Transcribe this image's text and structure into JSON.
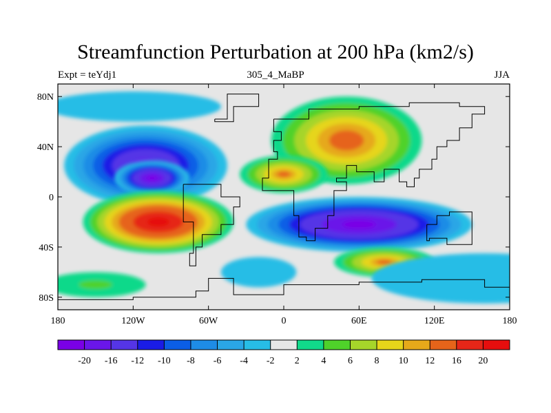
{
  "header": {
    "title": "Streamfunction Perturbation at 200 hPa (km2/s)",
    "left_label": "Expt = teYdj1",
    "center_label": "305_4_MaBP",
    "right_label": "JJA"
  },
  "map": {
    "projection": "cylindrical-equidistant",
    "lon_range": [
      -180,
      180
    ],
    "lat_range": [
      -90,
      90
    ],
    "x_ticks": [
      {
        "value": -180,
        "label": "180"
      },
      {
        "value": -120,
        "label": "120W"
      },
      {
        "value": -60,
        "label": "60W"
      },
      {
        "value": 0,
        "label": "0"
      },
      {
        "value": 60,
        "label": "60E"
      },
      {
        "value": 120,
        "label": "120E"
      },
      {
        "value": 180,
        "label": "180"
      }
    ],
    "y_ticks": [
      {
        "value": 80,
        "label": "80N"
      },
      {
        "value": 40,
        "label": "40N"
      },
      {
        "value": 0,
        "label": "0"
      },
      {
        "value": -40,
        "label": "40S"
      },
      {
        "value": -80,
        "label": "80S"
      }
    ],
    "features": [
      {
        "name": "blob-highlat-north-low",
        "lon": -120,
        "lat": 72,
        "rlon": 70,
        "rlat": 12,
        "value": -3
      },
      {
        "name": "blob-npac-low",
        "lon": -110,
        "lat": 25,
        "rlon": 65,
        "rlat": 32,
        "value": -18
      },
      {
        "name": "blob-npac-low-core",
        "lon": -105,
        "lat": 15,
        "rlon": 30,
        "rlat": 14,
        "value": -22
      },
      {
        "name": "blob-north-high-asia",
        "lon": 50,
        "lat": 45,
        "rlon": 60,
        "rlat": 35,
        "value": 14
      },
      {
        "name": "blob-north-high-africa",
        "lon": 0,
        "lat": 18,
        "rlon": 35,
        "rlat": 15,
        "value": 12
      },
      {
        "name": "blob-spac-high",
        "lon": -100,
        "lat": -20,
        "rlon": 60,
        "rlat": 25,
        "value": 22
      },
      {
        "name": "blob-sh-low",
        "lon": 60,
        "lat": -22,
        "rlon": 90,
        "rlat": 22,
        "value": -22
      },
      {
        "name": "blob-sh-high-south",
        "lon": 80,
        "lat": -52,
        "rlon": 40,
        "rlat": 12,
        "value": 12
      },
      {
        "name": "blob-south-ocean-low",
        "lon": 160,
        "lat": -65,
        "rlon": 90,
        "rlat": 20,
        "value": -3
      },
      {
        "name": "blob-south-high-west",
        "lon": -150,
        "lat": -70,
        "rlon": 40,
        "rlat": 10,
        "value": 4
      },
      {
        "name": "blob-atl-low",
        "lon": -20,
        "lat": -60,
        "rlon": 30,
        "rlat": 12,
        "value": -3
      }
    ]
  },
  "colorbar": {
    "labels": [
      "-20",
      "-16",
      "-12",
      "-10",
      "-8",
      "-6",
      "-4",
      "-2",
      "2",
      "4",
      "6",
      "8",
      "10",
      "12",
      "16",
      "20"
    ],
    "colors": [
      "#7a00e6",
      "#6a16e9",
      "#5535e6",
      "#1a1ce6",
      "#0b5ee6",
      "#1e8ce6",
      "#2aa6e6",
      "#27bde6",
      "#e6e6e6",
      "#11d98a",
      "#4fd22a",
      "#a6d52a",
      "#e6d51a",
      "#e6a91a",
      "#e6641a",
      "#e62618",
      "#e60e0e"
    ]
  }
}
